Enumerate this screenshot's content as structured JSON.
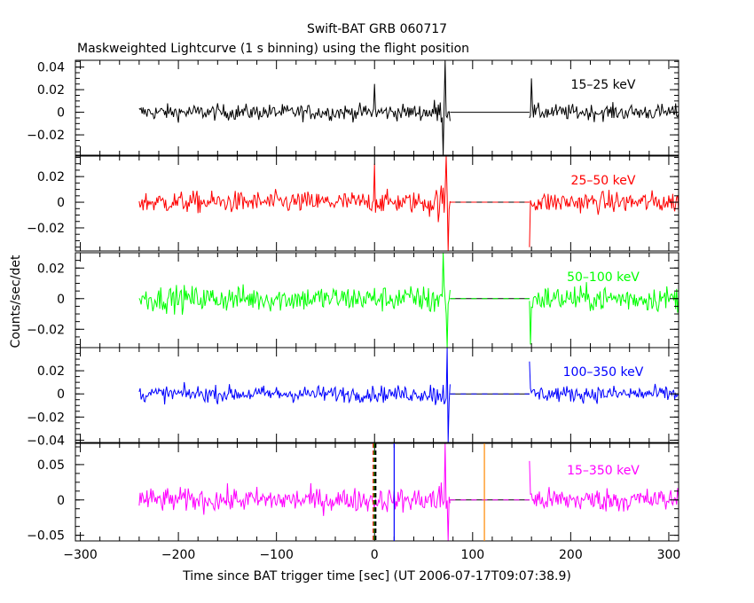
{
  "chart_data": {
    "type": "line",
    "title": "Swift-BAT GRB 060717",
    "subtitle": "Maskweighted Lightcurve (1 s binning) using the flight position",
    "xlabel": "Time since BAT trigger time [sec] (UT 2006-07-17T09:07:38.9)",
    "ylabel": "Counts/sec/det",
    "xlim": [
      -305,
      310
    ],
    "xticks": [
      -300,
      -200,
      -100,
      0,
      100,
      200,
      300
    ],
    "xtick_labels": [
      "−300",
      "−200",
      "−100",
      "0",
      "100",
      "200",
      "300"
    ],
    "data_segments": [
      [
        -240,
        77
      ],
      [
        158,
        310
      ]
    ],
    "gap": [
      77,
      158
    ],
    "markers": [
      {
        "x": -1,
        "color": "#ff0000",
        "style": "dashed"
      },
      {
        "x": 0,
        "color": "#00aa00",
        "style": "dashed"
      },
      {
        "x": 1,
        "color": "#000000",
        "style": "dashed"
      },
      {
        "x": 20,
        "color": "#0000ff",
        "style": "solid"
      },
      {
        "x": 112,
        "color": "#ff8800",
        "style": "solid"
      }
    ],
    "panels": [
      {
        "name": "15-25 keV",
        "band": "15–25 keV",
        "color": "#000000",
        "ylim": [
          -0.038,
          0.046
        ],
        "yticks": [
          -0.02,
          0,
          0.02,
          0.04
        ],
        "ytick_labels": [
          "−0.02",
          "0",
          "0.02",
          "0.04"
        ],
        "noise_sigma": 0.005,
        "spikes": [
          {
            "x": 0,
            "value": 0.025
          },
          {
            "x": 72,
            "value": 0.038
          },
          {
            "x": 70,
            "value": -0.035
          },
          {
            "x": 160,
            "value": 0.03
          }
        ]
      },
      {
        "name": "25-50 keV",
        "band": "25–50 keV",
        "color": "#ff0000",
        "ylim": [
          -0.038,
          0.036
        ],
        "yticks": [
          -0.02,
          0,
          0.02
        ],
        "ytick_labels": [
          "−0.02",
          "0",
          "0.02"
        ],
        "noise_sigma": 0.006,
        "spikes": [
          {
            "x": 0,
            "value": 0.03
          },
          {
            "x": 73,
            "value": 0.034
          },
          {
            "x": 75,
            "value": -0.025
          },
          {
            "x": 158,
            "value": -0.035
          }
        ]
      },
      {
        "name": "50-100 keV",
        "band": "50–100 keV",
        "color": "#00ff00",
        "ylim": [
          -0.032,
          0.03
        ],
        "yticks": [
          -0.02,
          0,
          0.02
        ],
        "ytick_labels": [
          "−0.02",
          "0",
          "0.02"
        ],
        "noise_sigma": 0.006,
        "spikes": [
          {
            "x": 70,
            "value": 0.024
          },
          {
            "x": 74,
            "value": -0.028
          },
          {
            "x": 159,
            "value": -0.03
          }
        ]
      },
      {
        "name": "100-350 keV",
        "band": "100–350 keV",
        "color": "#0000ff",
        "ylim": [
          -0.042,
          0.04
        ],
        "yticks": [
          -0.04,
          -0.02,
          0,
          0.02
        ],
        "ytick_labels": [
          "−0.04",
          "−0.02",
          "0",
          "0.02"
        ],
        "noise_sigma": 0.005,
        "spikes": [
          {
            "x": 74,
            "value": 0.032
          },
          {
            "x": 75,
            "value": -0.04
          },
          {
            "x": 158,
            "value": 0.028
          }
        ]
      },
      {
        "name": "15-350 keV",
        "band": "15–350 keV",
        "color": "#ff00ff",
        "ylim": [
          -0.058,
          0.08
        ],
        "yticks": [
          -0.05,
          0,
          0.05
        ],
        "ytick_labels": [
          "−0.05",
          "0",
          "0.05"
        ],
        "noise_sigma": 0.012,
        "spikes": [
          {
            "x": 72,
            "value": 0.06
          },
          {
            "x": 75,
            "value": -0.055
          },
          {
            "x": 158,
            "value": 0.055
          }
        ]
      }
    ]
  }
}
